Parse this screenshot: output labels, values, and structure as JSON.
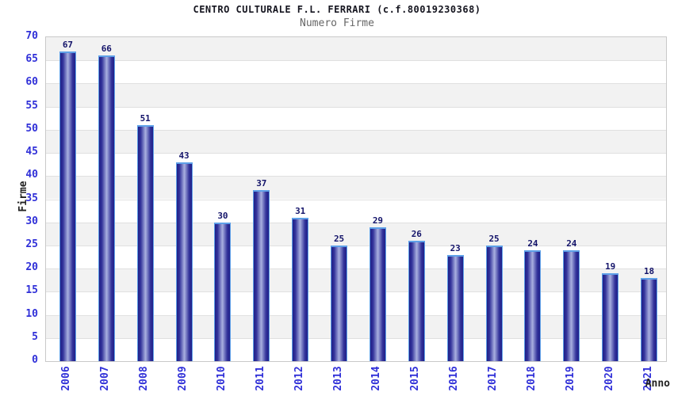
{
  "chart_data": {
    "type": "bar",
    "title": "CENTRO CULTURALE F.L. FERRARI (c.f.80019230368)",
    "subtitle": "Numero Firme",
    "xlabel": "Anno",
    "ylabel": "Firme",
    "categories": [
      "2006",
      "2007",
      "2008",
      "2009",
      "2010",
      "2011",
      "2012",
      "2013",
      "2014",
      "2015",
      "2016",
      "2017",
      "2018",
      "2019",
      "2020",
      "2021"
    ],
    "values": [
      67,
      66,
      51,
      43,
      30,
      37,
      31,
      25,
      29,
      26,
      23,
      25,
      24,
      24,
      19,
      18
    ],
    "ylim": [
      0,
      70
    ],
    "ytick_step": 5,
    "grid": "horizontal-bands-alternating",
    "legend": "none",
    "colors": {
      "title": "#15151f",
      "subtitle": "#666666",
      "axis_title": "#222222",
      "tick_label": "#3030d8",
      "value_label": "#14146a",
      "bar_edge": "#5ea0e8",
      "bar_dark": "#202088",
      "bar_mid": "#32329a",
      "bar_light": "#a9b0e0",
      "band_gray": "#f2f2f2",
      "band_white": "#ffffff",
      "grid_line": "#e0e0e0",
      "plot_border": "#c9c9c9"
    }
  }
}
